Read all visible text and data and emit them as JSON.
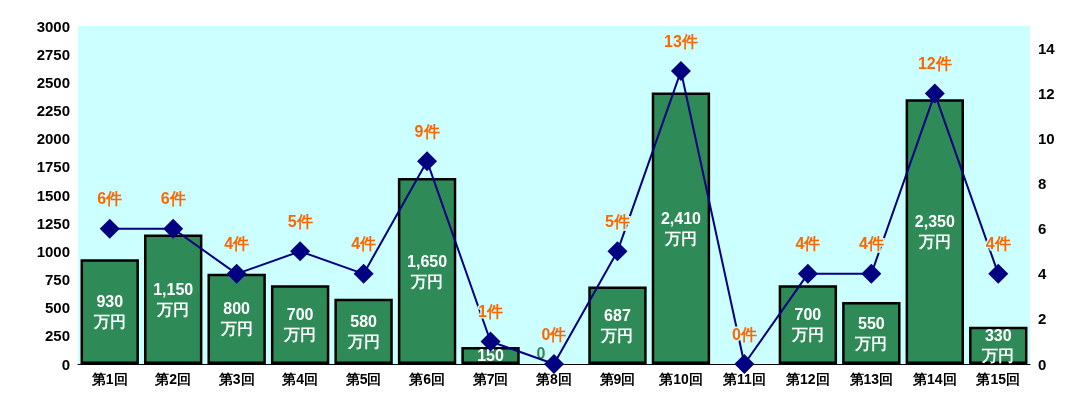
{
  "chart_data": {
    "type": "bar",
    "categories": [
      "第1回",
      "第2回",
      "第3回",
      "第4回",
      "第5回",
      "第6回",
      "第7回",
      "第8回",
      "第9回",
      "第10回",
      "第11回",
      "第12回",
      "第13回",
      "第14回",
      "第15回"
    ],
    "series": [
      {
        "color": "#2e8b57",
        "values": [
          930,
          1150,
          800,
          700,
          580,
          1650,
          150,
          0,
          687,
          2410,
          0,
          700,
          550,
          2350,
          330
        ],
        "value_labels": [
          "930\n万円",
          "1,150\n万円",
          "800\n万円",
          "700\n万円",
          "580\n万円",
          "1,650\n万円",
          "150",
          "0",
          "687\n万円",
          "2,410\n万円",
          null,
          "700\n万円",
          "550\n万円",
          "2,350\n万円",
          "330\n万円"
        ]
      },
      {
        "type": "line",
        "axis": "y2",
        "color": "#000080",
        "marker": "diamond",
        "values": [
          6,
          6,
          4,
          5,
          4,
          9,
          1,
          0,
          5,
          13,
          0,
          4,
          4,
          12,
          4
        ],
        "value_labels": [
          "6件",
          "6件",
          "4件",
          "5件",
          "4件",
          "9件",
          "1件",
          "0件",
          "5件",
          "13件",
          "0件",
          "4件",
          "4件",
          "12件",
          "4件"
        ]
      }
    ],
    "ylim": [
      0,
      3000
    ],
    "yticks": [
      0,
      250,
      500,
      750,
      1000,
      1250,
      1500,
      1750,
      2000,
      2250,
      2500,
      2750,
      3000
    ],
    "y2lim": [
      0,
      15
    ],
    "y2ticks": [
      0,
      2,
      4,
      6,
      8,
      10,
      12,
      14
    ],
    "grid": false
  }
}
